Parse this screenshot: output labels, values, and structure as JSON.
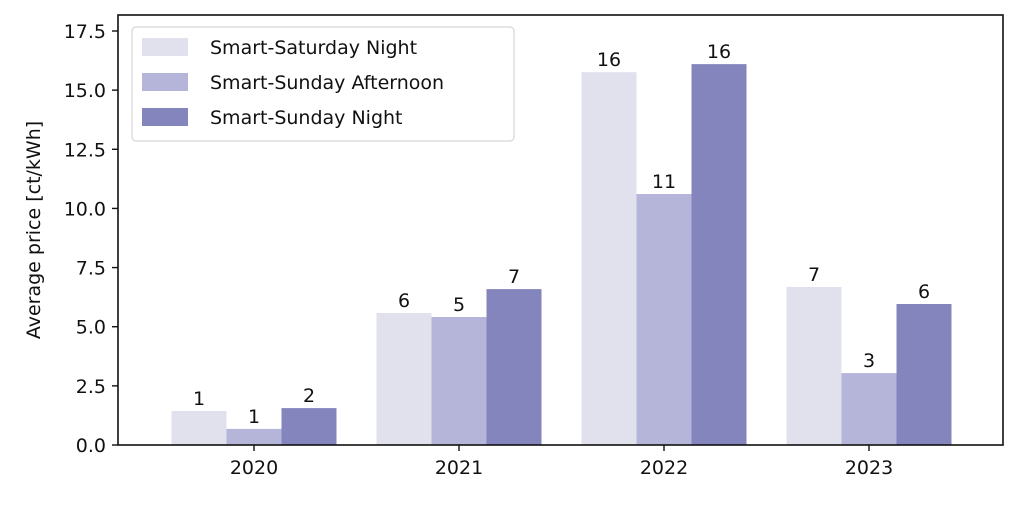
{
  "chart_data": {
    "type": "bar",
    "title": "",
    "xlabel": "",
    "ylabel": "Average price [ct/kWh]",
    "categories": [
      "2020",
      "2021",
      "2022",
      "2023"
    ],
    "ylim": [
      0,
      18.2
    ],
    "yticks": [
      "0.0",
      "2.5",
      "5.0",
      "7.5",
      "10.0",
      "12.5",
      "15.0",
      "17.5"
    ],
    "grid": false,
    "legend_position": "top-left",
    "series": [
      {
        "name": "Smart-Saturday Night",
        "color": "#e1e1ee",
        "values": [
          1.44,
          5.58,
          15.76,
          6.68
        ],
        "labels": [
          "1",
          "6",
          "16",
          "7"
        ]
      },
      {
        "name": "Smart-Sunday Afternoon",
        "color": "#b5b5d9",
        "values": [
          0.68,
          5.41,
          10.61,
          3.04
        ],
        "labels": [
          "1",
          "5",
          "11",
          "3"
        ]
      },
      {
        "name": "Smart-Sunday Night",
        "color": "#8585bd",
        "values": [
          1.56,
          6.59,
          16.1,
          5.96
        ],
        "labels": [
          "2",
          "7",
          "16",
          "6"
        ]
      }
    ]
  }
}
